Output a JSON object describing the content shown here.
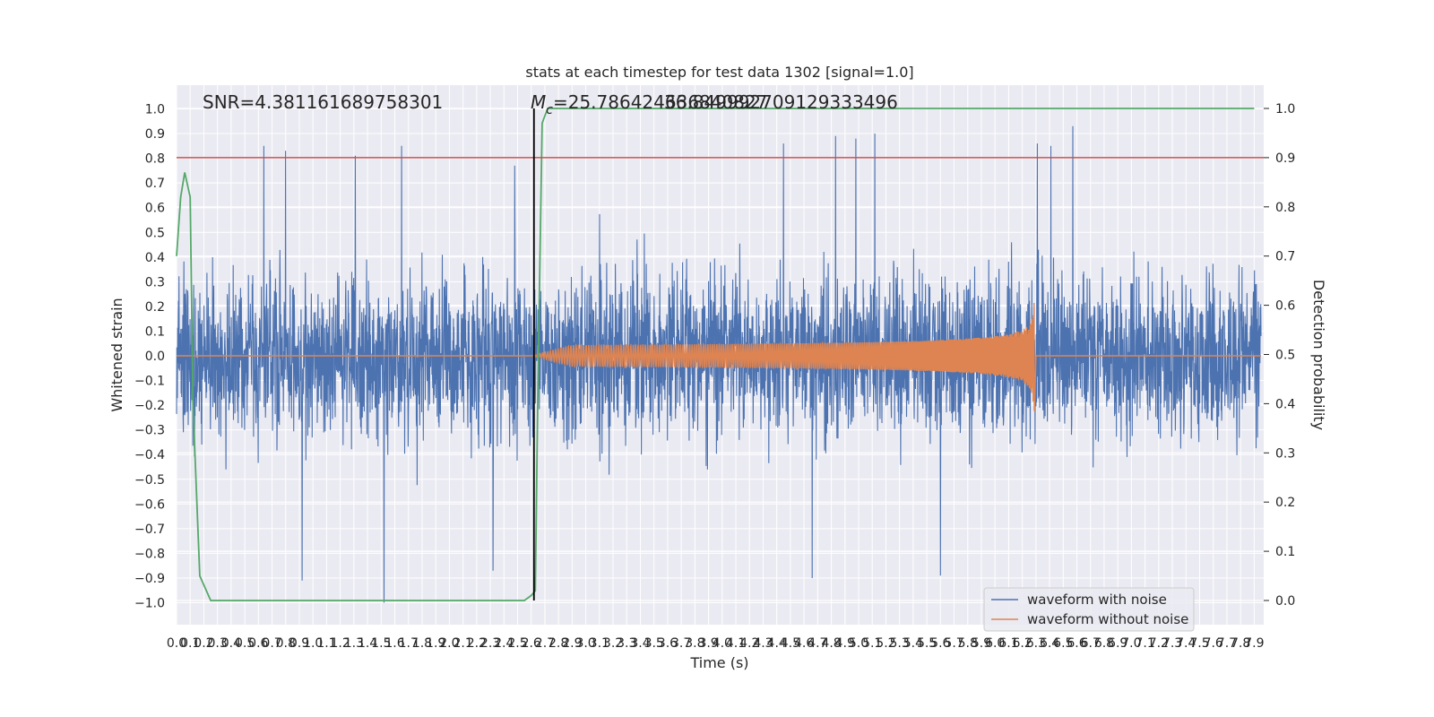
{
  "figure": {
    "title": "stats at each timestep for test data 1302 [signal=1.0]"
  },
  "chart_data": {
    "type": "line",
    "title": "stats at each timestep for test data 1302 [signal=1.0]",
    "xlabel": "Time (s)",
    "ylabel": "Whitened strain",
    "y2label": "Detection probability",
    "xlim": [
      0.0,
      7.95
    ],
    "ylim": [
      -1.1,
      1.1
    ],
    "y2lim": [
      -0.05,
      1.05
    ],
    "grid": true,
    "legend_position": "lower-right",
    "xticks": [
      0.0,
      0.1,
      0.2,
      0.3,
      0.4,
      0.5,
      0.6,
      0.7,
      0.8,
      0.9,
      1.0,
      1.1,
      1.2,
      1.3,
      1.4,
      1.5,
      1.6,
      1.7,
      1.8,
      1.9,
      2.0,
      2.1,
      2.2,
      2.3,
      2.4,
      2.5,
      2.6,
      2.7,
      2.8,
      2.9,
      3.0,
      3.1,
      3.2,
      3.3,
      3.4,
      3.5,
      3.6,
      3.7,
      3.8,
      3.9,
      4.0,
      4.1,
      4.2,
      4.3,
      4.4,
      4.5,
      4.6,
      4.7,
      4.8,
      4.9,
      5.0,
      5.1,
      5.2,
      5.3,
      5.4,
      5.5,
      5.6,
      5.7,
      5.8,
      5.9,
      6.0,
      6.1,
      6.2,
      6.3,
      6.4,
      6.5,
      6.6,
      6.7,
      6.8,
      6.9,
      7.0,
      7.1,
      7.2,
      7.3,
      7.4,
      7.5,
      7.6,
      7.7,
      7.8,
      7.9
    ],
    "xtick_labels": [
      "0.0",
      "0.1",
      "0.2",
      "0.3",
      "0.4",
      "0.5",
      "0.6",
      "0.7",
      "0.8",
      "0.9",
      "1.0",
      "1.1",
      "1.2",
      "1.3",
      "1.4",
      "1.5",
      "1.6",
      "1.7",
      "1.8",
      "1.9",
      "2.0",
      "2.1",
      "2.2",
      "2.3",
      "2.4",
      "2.5",
      "2.6",
      "2.7",
      "2.8",
      "2.9",
      "3.0",
      "3.1",
      "3.2",
      "3.3",
      "3.4",
      "3.5",
      "3.6",
      "3.7",
      "3.8",
      "3.9",
      "4.0",
      "4.1",
      "4.2",
      "4.3",
      "4.4",
      "4.5",
      "4.6",
      "4.7",
      "4.8",
      "4.9",
      "5.0",
      "5.1",
      "5.2",
      "5.3",
      "5.4",
      "5.5",
      "5.6",
      "5.7",
      "5.8",
      "5.9",
      "6.0",
      "6.1",
      "6.2",
      "6.3",
      "6.4",
      "6.5",
      "6.6",
      "6.7",
      "6.8",
      "6.9",
      "7.0",
      "7.1",
      "7.2",
      "7.3",
      "7.4",
      "7.5",
      "7.6",
      "7.7",
      "7.8",
      "7.9"
    ],
    "yticks": [
      1.0,
      0.9,
      0.8,
      0.7,
      0.6,
      0.5,
      0.4,
      0.3,
      0.2,
      0.1,
      0.0,
      -0.1,
      -0.2,
      -0.3,
      -0.4,
      -0.5,
      -0.6,
      -0.7,
      -0.8,
      -0.9,
      -1.0
    ],
    "ytick_labels": [
      "1.0",
      "0.9",
      "0.8",
      "0.7",
      "0.6",
      "0.5",
      "0.4",
      "0.3",
      "0.2",
      "0.1",
      "0.0",
      "−0.1",
      "−0.2",
      "−0.3",
      "−0.4",
      "−0.5",
      "−0.6",
      "−0.7",
      "−0.8",
      "−0.9",
      "−1.0"
    ],
    "y2ticks": [
      1.0,
      0.9,
      0.8,
      0.7,
      0.6,
      0.5,
      0.4,
      0.3,
      0.2,
      0.1,
      0.0
    ],
    "y2tick_labels": [
      "1.0",
      "0.9",
      "0.8",
      "0.7",
      "0.6",
      "0.5",
      "0.4",
      "0.3",
      "0.2",
      "0.1",
      "0.0"
    ],
    "series": [
      {
        "name": "waveform with noise",
        "color": "#4c72b0",
        "kind": "noise",
        "t_range": [
          0.0,
          7.95
        ],
        "typical_amplitude": 0.42,
        "approx_peak_times": [
          0.64,
          0.8,
          1.31,
          1.65,
          2.48,
          4.45,
          4.83,
          4.98,
          5.12,
          6.31,
          6.41,
          6.57
        ],
        "approx_peak_values": [
          0.85,
          0.83,
          0.81,
          0.85,
          0.77,
          0.86,
          0.89,
          0.88,
          0.9,
          0.86,
          0.85,
          0.93
        ],
        "approx_trough_times": [
          1.52,
          0.92,
          2.32,
          4.66,
          5.6
        ],
        "approx_trough_values": [
          -1.0,
          -0.91,
          -0.87,
          -0.9,
          -0.89
        ]
      },
      {
        "name": "waveform without noise",
        "color": "#dd8452",
        "kind": "chirp",
        "t_range": [
          2.6,
          6.29
        ],
        "peak_time": 6.29,
        "peak_amplitude": 0.25
      },
      {
        "name": "detection probability",
        "color": "#55a868",
        "axis": "y2",
        "x": [
          0.0,
          0.03,
          0.06,
          0.1,
          0.12,
          0.17,
          0.25,
          0.5,
          1.0,
          1.5,
          2.0,
          2.55,
          2.6,
          2.63,
          2.65,
          2.68,
          2.72,
          2.75,
          3.0,
          4.0,
          5.0,
          6.0,
          7.0,
          7.9
        ],
        "y": [
          0.7,
          0.82,
          0.87,
          0.82,
          0.4,
          0.05,
          0.0,
          0.0,
          0.0,
          0.0,
          0.0,
          0.0,
          0.01,
          0.02,
          0.45,
          0.97,
          1.0,
          1.0,
          1.0,
          1.0,
          1.0,
          1.0,
          1.0,
          1.0
        ]
      }
    ],
    "threshold": {
      "value": 0.9,
      "axis": "y2",
      "color": "#c44e52"
    },
    "vline": {
      "x": 2.62,
      "color": "#000000"
    },
    "annotations": [
      {
        "text": "SNR=4.381161689758301"
      },
      {
        "text": "M_c=25.786424636840827",
        "overlap_text": "36.849992709129333496",
        "symbol": "M",
        "subscript": "c",
        "rest": "=25.786424636840827"
      }
    ]
  }
}
